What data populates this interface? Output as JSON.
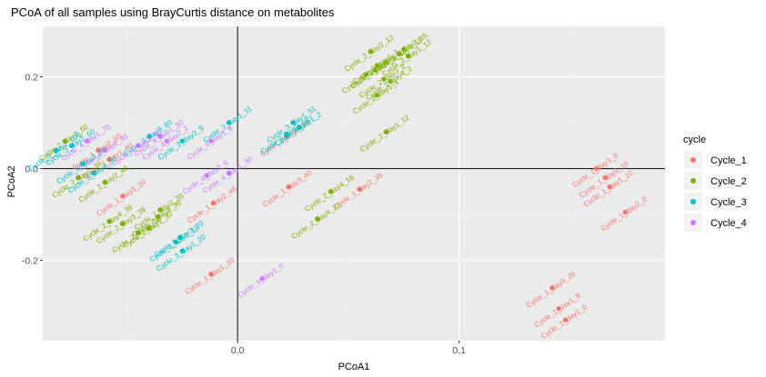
{
  "chart_data": {
    "type": "scatter",
    "title": "PCoA of all samples using BrayCurtis distance on metabolites",
    "xlabel": "PCoA1",
    "ylabel": "PCoA2",
    "xlim": [
      -0.088,
      0.193
    ],
    "ylim": [
      -0.375,
      0.31
    ],
    "x_ticks": [
      0.0,
      0.1
    ],
    "x_tick_labels": [
      "0.0",
      "0.1"
    ],
    "y_ticks": [
      -0.2,
      0.0,
      0.2
    ],
    "y_tick_labels": [
      "-0.2",
      "0.0",
      "0.2"
    ],
    "grid": true,
    "reference_lines": {
      "x": 0,
      "y": 0
    },
    "legend": {
      "title": "cycle",
      "position": "right"
    },
    "series": [
      {
        "name": "Cycle_1",
        "color": "#F8766D",
        "points": [
          {
            "x": 0.162,
            "y": 0.0,
            "label": "Cycle_1_day3_0"
          },
          {
            "x": 0.166,
            "y": -0.02,
            "label": "Cycle_1_day3_10"
          },
          {
            "x": 0.168,
            "y": -0.04,
            "label": "Cycle_1_day1_10"
          },
          {
            "x": 0.175,
            "y": -0.095,
            "label": "Cycle_1_day2_0"
          },
          {
            "x": 0.142,
            "y": -0.26,
            "label": "Cycle_1_day3_20"
          },
          {
            "x": 0.145,
            "y": -0.305,
            "label": "Cycle_1_day1_8"
          },
          {
            "x": 0.148,
            "y": -0.33,
            "label": "Cycle_1_day1_0"
          },
          {
            "x": 0.023,
            "y": -0.04,
            "label": "Cycle_1_day3_40"
          },
          {
            "x": 0.055,
            "y": -0.045,
            "label": "Cycle_1_day2_35"
          },
          {
            "x": -0.011,
            "y": -0.075,
            "label": "Cycle_1_day2_46"
          },
          {
            "x": -0.012,
            "y": -0.23,
            "label": "Cycle_1_day1_30"
          },
          {
            "x": 0.022,
            "y": 0.07,
            "label": "Cycle_1_day4_18"
          },
          {
            "x": -0.052,
            "y": -0.06,
            "label": "Cycle_1_day3_10"
          },
          {
            "x": -0.063,
            "y": 0.04,
            "label": "Cycle_1_day2_50"
          },
          {
            "x": -0.058,
            "y": 0.02,
            "label": "Cycle_1_day1_40"
          }
        ]
      },
      {
        "name": "Cycle_2",
        "color": "#7CAE00",
        "points": [
          {
            "x": 0.06,
            "y": 0.255,
            "label": "Cycle_2_day2_12"
          },
          {
            "x": 0.063,
            "y": 0.225,
            "label": "Cycle_2_day2_2"
          },
          {
            "x": 0.062,
            "y": 0.215,
            "label": "Cycle_2_day3_6"
          },
          {
            "x": 0.058,
            "y": 0.205,
            "label": "Cycle_2_day1_6"
          },
          {
            "x": 0.066,
            "y": 0.195,
            "label": "Cycle_2_day3_2"
          },
          {
            "x": 0.069,
            "y": 0.19,
            "label": "Cycle_2_day4_2"
          },
          {
            "x": 0.075,
            "y": 0.26,
            "label": "Cycle_2_day2_16"
          },
          {
            "x": 0.077,
            "y": 0.245,
            "label": "Cycle_2_day1_12"
          },
          {
            "x": 0.073,
            "y": 0.25,
            "label": "Cycle_2_day3_18"
          },
          {
            "x": 0.063,
            "y": 0.16,
            "label": "Cycle_2_day1_4"
          },
          {
            "x": 0.067,
            "y": 0.08,
            "label": "Cycle_2_day1_12"
          },
          {
            "x": 0.042,
            "y": -0.05,
            "label": "Cycle_2_day4_16"
          },
          {
            "x": 0.036,
            "y": -0.11,
            "label": "Cycle_2_day4_22"
          },
          {
            "x": -0.078,
            "y": 0.06,
            "label": "Cycle_2_day2_50"
          },
          {
            "x": -0.072,
            "y": -0.02,
            "label": "Cycle_2_day1_38"
          },
          {
            "x": -0.052,
            "y": -0.12,
            "label": "Cycle_2_day3_38"
          },
          {
            "x": -0.058,
            "y": -0.115,
            "label": "Cycle_2_day4_38"
          },
          {
            "x": -0.035,
            "y": -0.09,
            "label": "Cycle_2_day2_30"
          },
          {
            "x": -0.04,
            "y": -0.13,
            "label": "Cycle_2_day1_30"
          },
          {
            "x": -0.045,
            "y": -0.14,
            "label": "Cycle_2_day3_30"
          },
          {
            "x": -0.036,
            "y": -0.105,
            "label": "Cycle_2_day4_30"
          },
          {
            "x": -0.06,
            "y": -0.03,
            "label": "Cycle_2_day2_40"
          }
        ]
      },
      {
        "name": "Cycle_3",
        "color": "#00BFC4",
        "points": [
          {
            "x": -0.004,
            "y": 0.1,
            "label": "Cycle_3_day1_11"
          },
          {
            "x": 0.025,
            "y": 0.1,
            "label": "Cycle_3_day1_51"
          },
          {
            "x": 0.028,
            "y": 0.09,
            "label": "Cycle_3_day1_2"
          },
          {
            "x": 0.022,
            "y": 0.075,
            "label": "Cycle_3_day2_18"
          },
          {
            "x": -0.04,
            "y": 0.07,
            "label": "Cycle_3_day3_60"
          },
          {
            "x": -0.025,
            "y": 0.06,
            "label": "Cycle_3_day2_5"
          },
          {
            "x": -0.028,
            "y": -0.16,
            "label": "Cycle_3_day2_10"
          },
          {
            "x": -0.025,
            "y": -0.18,
            "label": "Cycle_3_day1_20"
          },
          {
            "x": -0.026,
            "y": -0.15,
            "label": "Cycle_3_day3_20"
          },
          {
            "x": -0.082,
            "y": 0.04,
            "label": "Cycle_3_day1_100"
          },
          {
            "x": -0.075,
            "y": 0.05,
            "label": "Cycle_3_day2_50"
          },
          {
            "x": -0.07,
            "y": 0.01,
            "label": "Cycle_3_day3_38"
          },
          {
            "x": -0.065,
            "y": -0.01,
            "label": "Cycle_3_day4_70"
          }
        ]
      },
      {
        "name": "Cycle_4",
        "color": "#C77CFF",
        "points": [
          {
            "x": -0.035,
            "y": 0.07,
            "label": "Cycle_4_day1_50"
          },
          {
            "x": -0.032,
            "y": 0.06,
            "label": "Cycle_4_day2_2"
          },
          {
            "x": -0.012,
            "y": 0.06,
            "label": "Cycle_4_day1_6"
          },
          {
            "x": -0.014,
            "y": -0.015,
            "label": "Cycle_4_day2_6"
          },
          {
            "x": -0.004,
            "y": -0.01,
            "label": "Cycle_4_day1_30"
          },
          {
            "x": 0.011,
            "y": -0.24,
            "label": "Cycle_4_day1_0"
          },
          {
            "x": -0.045,
            "y": 0.05,
            "label": "Cycle_4_day3_60"
          },
          {
            "x": -0.068,
            "y": 0.06,
            "label": "Cycle_4_day1_70"
          },
          {
            "x": -0.06,
            "y": 0.04,
            "label": "Cycle_4_day2_40"
          }
        ]
      }
    ]
  }
}
